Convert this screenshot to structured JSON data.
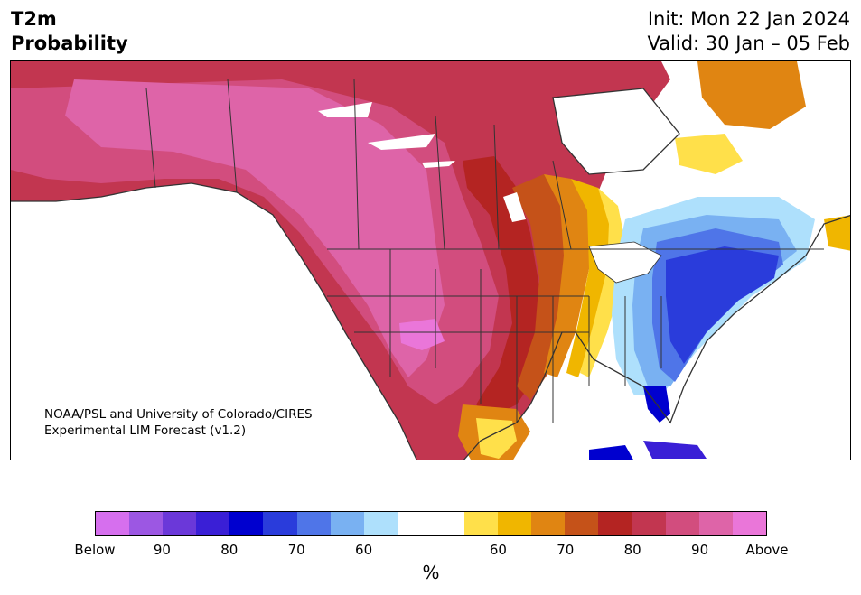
{
  "header": {
    "title_line1": "T2m",
    "title_line2": "Probability",
    "init": "Init: Mon 22 Jan 2024",
    "valid": "Valid: 30 Jan – 05 Feb"
  },
  "credit": {
    "line1": "NOAA/PSL and University of Colorado/CIRES",
    "line2": "Experimental LIM Forecast (v1.2)"
  },
  "colorbar": {
    "unit": "%",
    "ticks": [
      "Below",
      "90",
      "80",
      "70",
      "60",
      "60",
      "70",
      "80",
      "90",
      "Above"
    ],
    "colors": [
      "#d66fee",
      "#9c57e3",
      "#6b38d9",
      "#3a1fd6",
      "#0000cf",
      "#2a3cdb",
      "#4f75e8",
      "#79b1f2",
      "#aee0fc",
      "#ffffff",
      "#ffffff",
      "#ffe04a",
      "#f0b600",
      "#e08512",
      "#c55219",
      "#b42422",
      "#c23650",
      "#d24d7e",
      "#de64a8",
      "#ea76d9"
    ]
  },
  "map": {
    "region": "North America",
    "colors": {
      "land": "#ffffff",
      "borders": "#333333"
    }
  }
}
